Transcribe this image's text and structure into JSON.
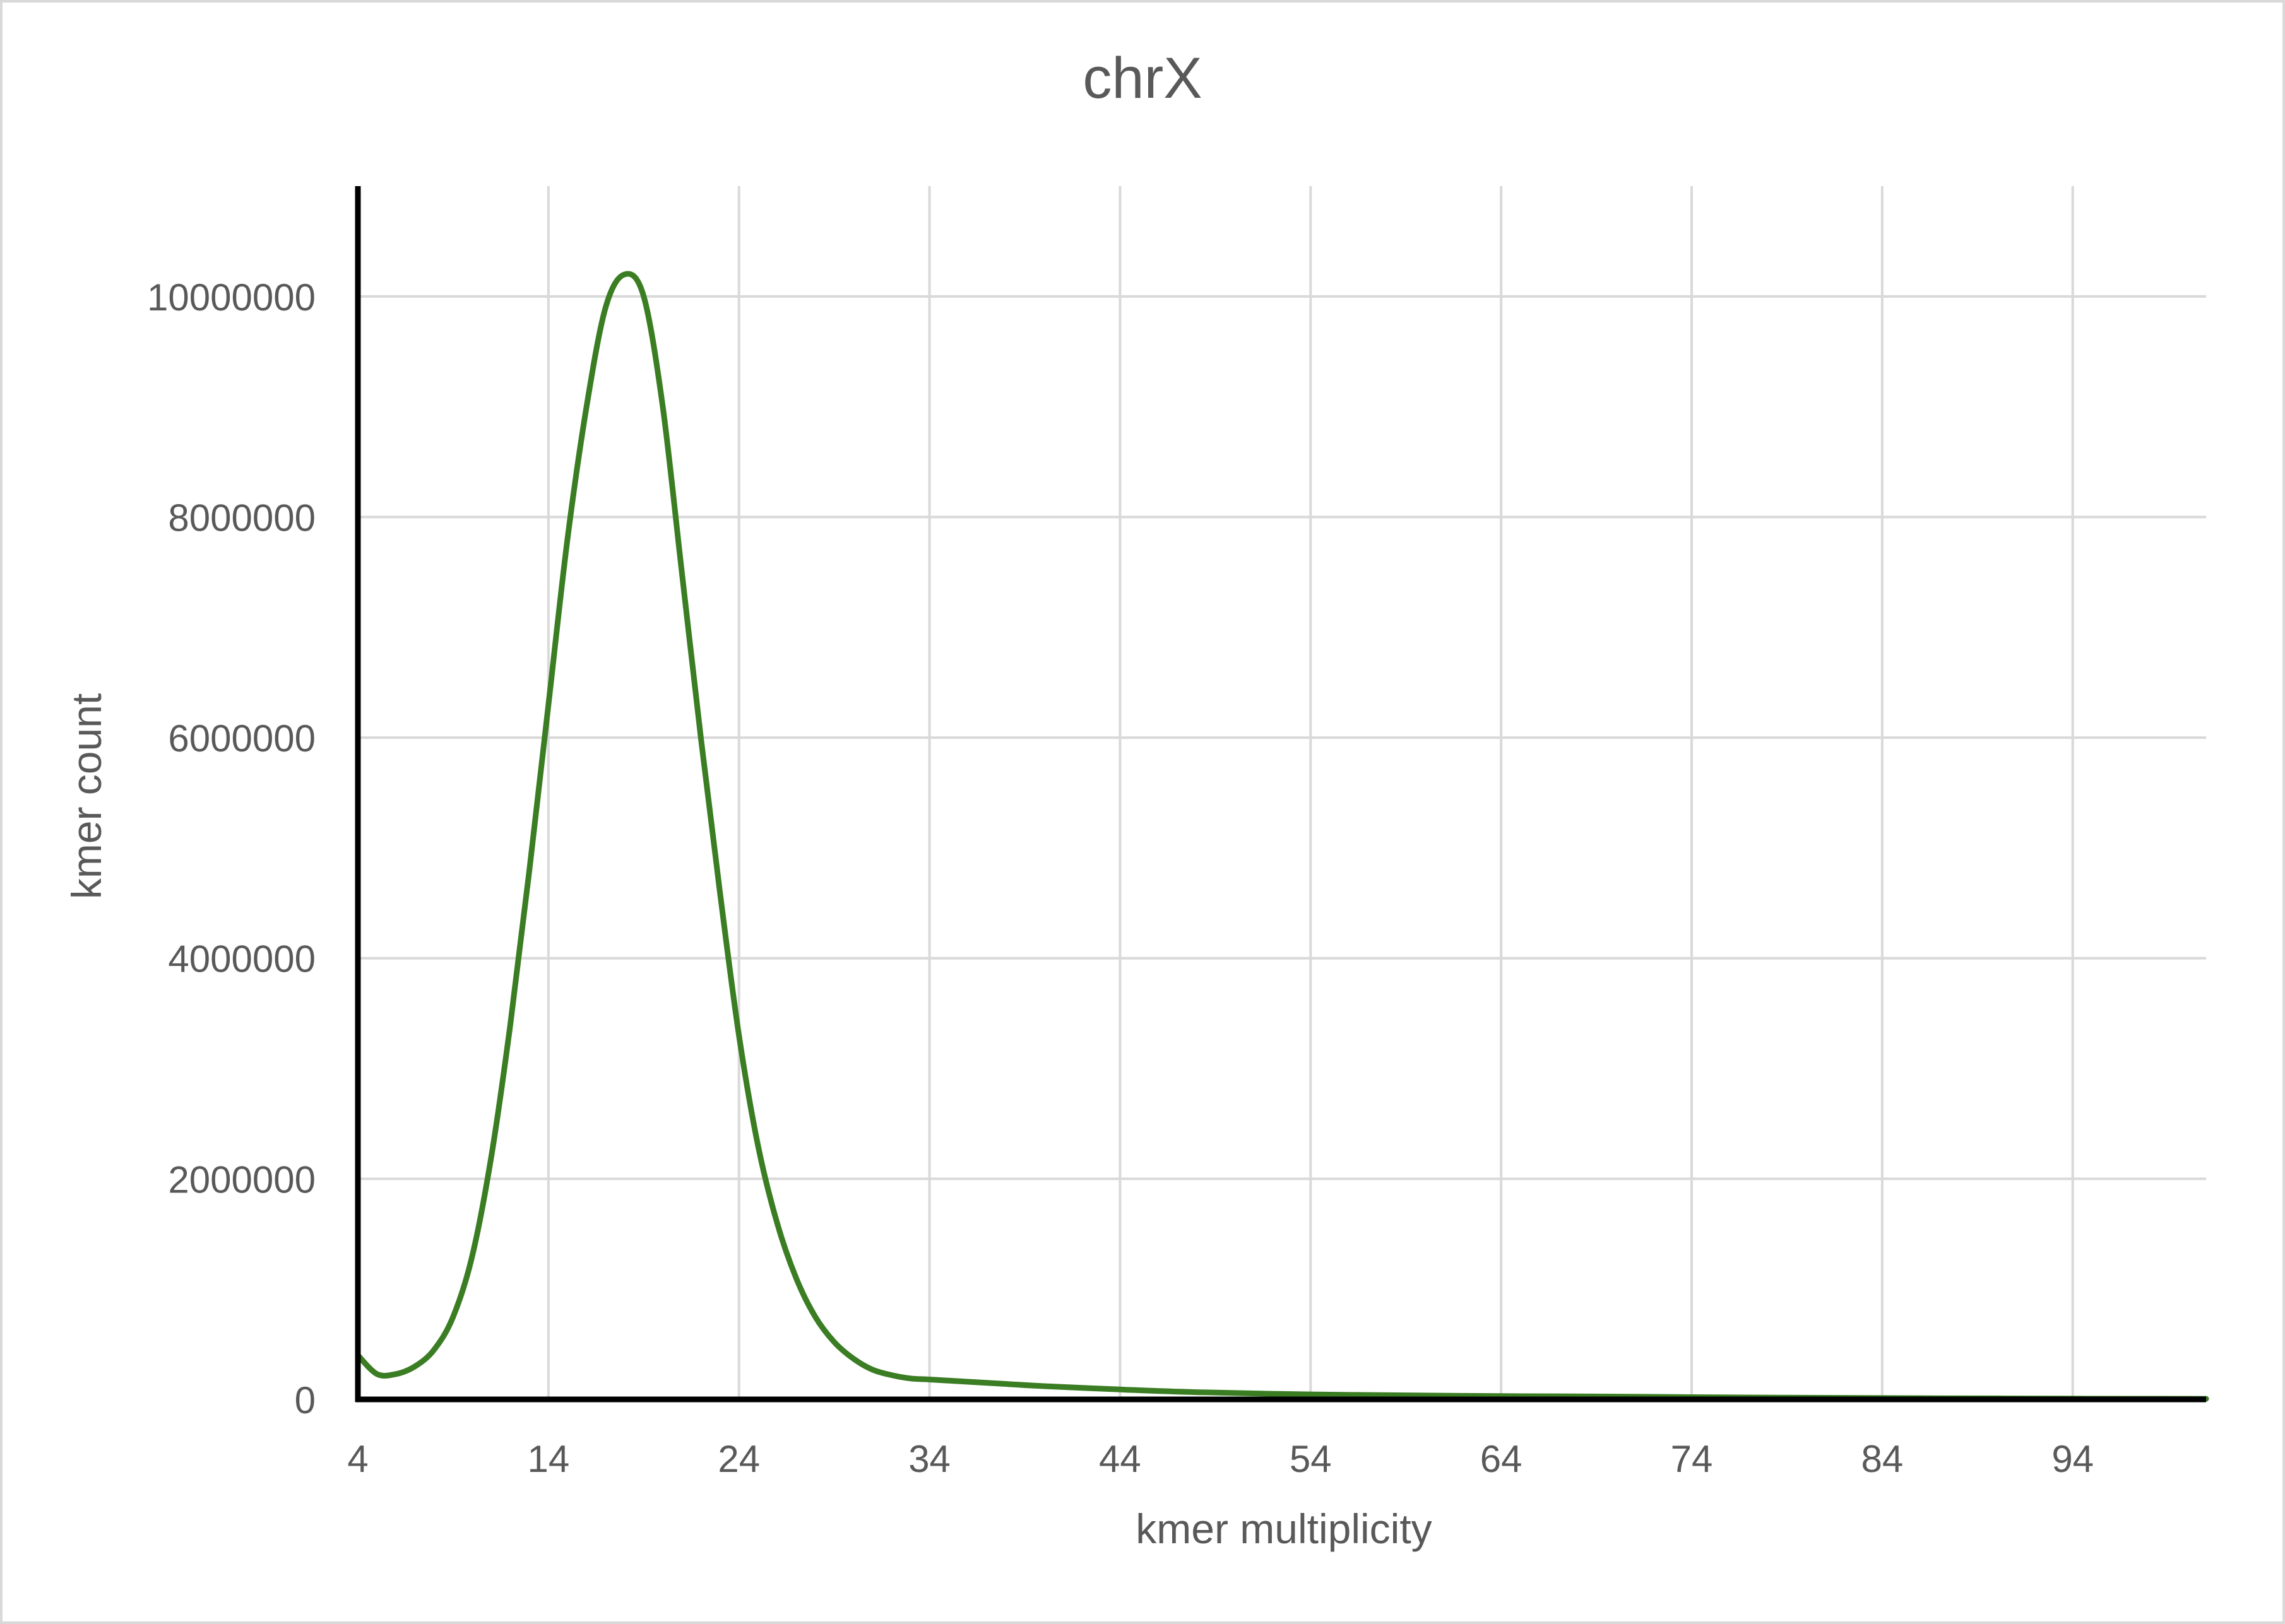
{
  "chart_data": {
    "type": "line",
    "title": "chrX",
    "xlabel": "kmer multiplicity",
    "ylabel": "kmer count",
    "xlim": [
      4,
      101
    ],
    "ylim": [
      0,
      11000000
    ],
    "x_ticks": [
      4,
      14,
      24,
      34,
      44,
      54,
      64,
      74,
      84,
      94
    ],
    "y_ticks": [
      0,
      2000000,
      4000000,
      6000000,
      8000000,
      10000000
    ],
    "x_tick_labels": [
      "4",
      "14",
      "24",
      "34",
      "44",
      "54",
      "64",
      "74",
      "84",
      "94"
    ],
    "y_tick_labels": [
      "0",
      "2000000",
      "4000000",
      "6000000",
      "8000000",
      "10000000"
    ],
    "grid": true,
    "legend": "none",
    "line_color": "#3a7d22",
    "series": [
      {
        "x": [
          4,
          5,
          6,
          7,
          8,
          9,
          10,
          11,
          12,
          13,
          14,
          15,
          16,
          17,
          18,
          19,
          20,
          21,
          22,
          23,
          24,
          25,
          26,
          27,
          28,
          29,
          30,
          31,
          32,
          33,
          34,
          36,
          38,
          40,
          44,
          48,
          54,
          60,
          64,
          70,
          74,
          80,
          84,
          90,
          94,
          101
        ],
        "y": [
          400000,
          230000,
          230000,
          300000,
          450000,
          750000,
          1300000,
          2200000,
          3400000,
          4800000,
          6300000,
          7800000,
          9000000,
          9900000,
          10200000,
          10000000,
          9000000,
          7500000,
          6000000,
          4600000,
          3300000,
          2300000,
          1600000,
          1100000,
          750000,
          520000,
          370000,
          270000,
          220000,
          190000,
          180000,
          160000,
          140000,
          120000,
          90000,
          65000,
          45000,
          35000,
          30000,
          25000,
          20000,
          15000,
          12000,
          9000,
          7000,
          5000
        ]
      }
    ]
  }
}
